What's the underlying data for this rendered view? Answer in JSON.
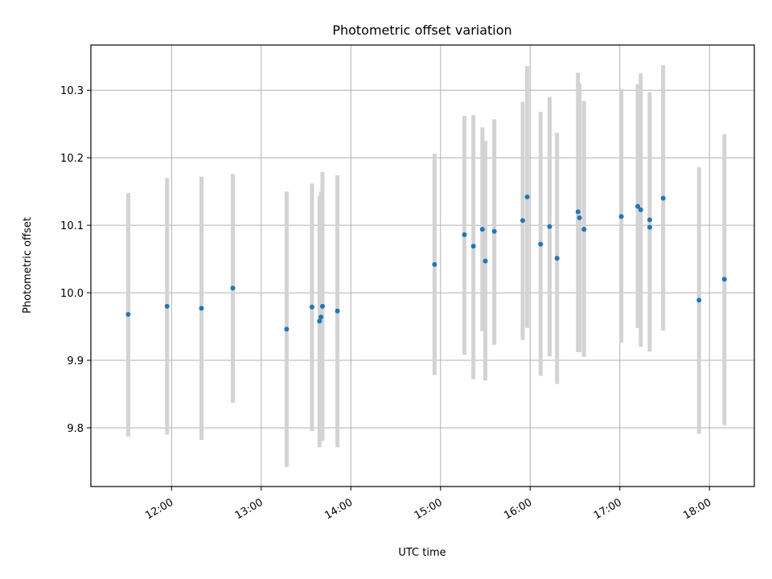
{
  "chart_data": {
    "type": "scatter",
    "title": "Photometric offset variation",
    "xlabel": "UTC time",
    "ylabel": "Photometric offset",
    "xlim": [
      "11:06",
      "18:30"
    ],
    "ylim": [
      9.713,
      10.367
    ],
    "grid": true,
    "x_ticks": [
      "12:00",
      "13:00",
      "14:00",
      "15:00",
      "16:00",
      "17:00",
      "18:00"
    ],
    "y_ticks": [
      "9.8",
      "9.9",
      "10.0",
      "10.1",
      "10.2",
      "10.3"
    ],
    "point_color": "#1f77b4",
    "errorbar_color": "#d3d3d3",
    "series": [
      {
        "points": [
          {
            "x": "11:31",
            "y": 9.968,
            "low": 9.787,
            "high": 10.148
          },
          {
            "x": "11:57",
            "y": 9.98,
            "low": 9.79,
            "high": 10.17
          },
          {
            "x": "12:20",
            "y": 9.977,
            "low": 9.782,
            "high": 10.172
          },
          {
            "x": "12:41",
            "y": 10.007,
            "low": 9.837,
            "high": 10.176
          },
          {
            "x": "13:17",
            "y": 9.946,
            "low": 9.742,
            "high": 10.15
          },
          {
            "x": "13:34",
            "y": 9.979,
            "low": 9.795,
            "high": 10.162
          },
          {
            "x": "13:39",
            "y": 9.958,
            "low": 9.771,
            "high": 10.143
          },
          {
            "x": "13:40",
            "y": 9.964,
            "low": 9.78,
            "high": 10.15
          },
          {
            "x": "13:41",
            "y": 9.98,
            "low": 9.781,
            "high": 10.179
          },
          {
            "x": "13:51",
            "y": 9.973,
            "low": 9.771,
            "high": 10.174
          },
          {
            "x": "14:56",
            "y": 10.042,
            "low": 9.878,
            "high": 10.206
          },
          {
            "x": "15:16",
            "y": 10.086,
            "low": 9.908,
            "high": 10.262
          },
          {
            "x": "15:22",
            "y": 10.069,
            "low": 9.872,
            "high": 10.263
          },
          {
            "x": "15:28",
            "y": 10.094,
            "low": 9.943,
            "high": 10.245
          },
          {
            "x": "15:30",
            "y": 10.047,
            "low": 9.87,
            "high": 10.225
          },
          {
            "x": "15:36",
            "y": 10.091,
            "low": 9.923,
            "high": 10.257
          },
          {
            "x": "15:55",
            "y": 10.107,
            "low": 9.93,
            "high": 10.283
          },
          {
            "x": "15:58",
            "y": 10.142,
            "low": 9.948,
            "high": 10.336
          },
          {
            "x": "16:07",
            "y": 10.072,
            "low": 9.877,
            "high": 10.268
          },
          {
            "x": "16:13",
            "y": 10.098,
            "low": 9.906,
            "high": 10.29
          },
          {
            "x": "16:18",
            "y": 10.051,
            "low": 9.865,
            "high": 10.237
          },
          {
            "x": "16:32",
            "y": 10.12,
            "low": 9.912,
            "high": 10.326
          },
          {
            "x": "16:33",
            "y": 10.111,
            "low": 9.912,
            "high": 10.31
          },
          {
            "x": "16:36",
            "y": 10.094,
            "low": 9.905,
            "high": 10.284
          },
          {
            "x": "17:01",
            "y": 10.113,
            "low": 9.926,
            "high": 10.302
          },
          {
            "x": "17:12",
            "y": 10.128,
            "low": 9.948,
            "high": 10.309
          },
          {
            "x": "17:14",
            "y": 10.123,
            "low": 9.92,
            "high": 10.325
          },
          {
            "x": "17:20",
            "y": 10.097,
            "low": 9.913,
            "high": 10.282
          },
          {
            "x": "17:20",
            "y": 10.108,
            "low": 9.921,
            "high": 10.297
          },
          {
            "x": "17:29",
            "y": 10.14,
            "low": 9.944,
            "high": 10.337
          },
          {
            "x": "17:53",
            "y": 9.989,
            "low": 9.791,
            "high": 10.186
          },
          {
            "x": "18:10",
            "y": 10.02,
            "low": 9.804,
            "high": 10.235
          }
        ]
      }
    ]
  }
}
